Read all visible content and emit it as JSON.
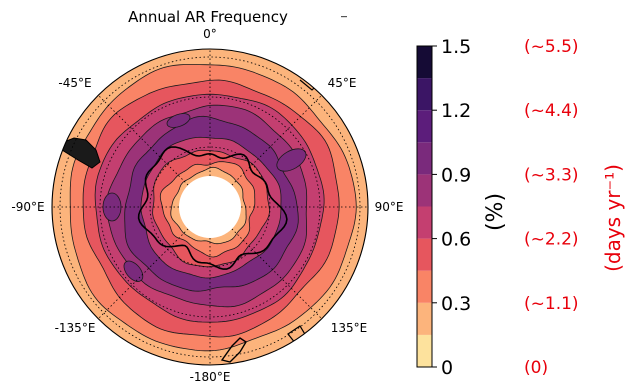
{
  "chart_data": {
    "type": "heatmap",
    "projection": "south-polar-stereographic",
    "title": "Annual AR Frequency",
    "longitude_labels": [
      "0°",
      "45°E",
      "90°E",
      "135°E",
      "-180°E",
      "-135°E",
      "-90°E",
      "-45°E"
    ],
    "latitude_circles_dotted": true,
    "colorbar": {
      "orientation": "vertical",
      "placement": "right",
      "label": "(%)",
      "ticks": [
        0,
        0.3,
        0.6,
        0.9,
        1.2,
        1.5
      ],
      "tick_labels": [
        "0",
        "0.3",
        "0.6",
        "0.9",
        "1.2",
        "1.5"
      ],
      "levels": [
        0,
        0.15,
        0.3,
        0.45,
        0.6,
        0.75,
        0.9,
        1.05,
        1.2,
        1.35,
        1.5
      ],
      "level_colors": [
        "#fde29d",
        "#fcb47c",
        "#f98466",
        "#e6565e",
        "#c43f70",
        "#9c3378",
        "#7a2a7c",
        "#5c1d7b",
        "#3b1565",
        "#150b35"
      ],
      "secondary_label": "(days yr⁻¹)",
      "secondary_tick_labels": [
        "(0)",
        "(~1.1)",
        "(~2.2)",
        "(~3.3)",
        "(~4.4)",
        "(~5.5)"
      ],
      "secondary_color": "#e8000b"
    },
    "zonal_frequency_bands": [
      {
        "level_range": [
          0.3,
          0.45
        ],
        "color": "#fcb47c"
      },
      {
        "level_range": [
          0.45,
          0.6
        ],
        "color": "#f98466"
      },
      {
        "level_range": [
          0.6,
          0.75
        ],
        "color": "#e6565e"
      },
      {
        "level_range": [
          0.75,
          0.9
        ],
        "color": "#c43f70"
      },
      {
        "level_range": [
          0.9,
          1.05
        ],
        "color": "#9c3378"
      },
      {
        "level_range": [
          1.05,
          1.2
        ],
        "color": "#7a2a7c"
      },
      {
        "level_range": [
          0.75,
          0.9
        ],
        "color": "#c43f70"
      },
      {
        "level_range": [
          0.6,
          0.75
        ],
        "color": "#e6565e"
      },
      {
        "level_range": [
          0.45,
          0.6
        ],
        "color": "#f98466"
      },
      {
        "level_range": [
          0.3,
          0.45
        ],
        "color": "#fcb47c"
      }
    ],
    "local_maxima": [
      {
        "region": "near -90°E",
        "level_range": [
          1.05,
          1.2
        ]
      },
      {
        "region": "near 60°E",
        "level_range": [
          1.05,
          1.2
        ]
      },
      {
        "region": "near -150°E",
        "level_range": [
          1.05,
          1.2
        ]
      },
      {
        "region": "near -30°E",
        "level_range": [
          1.05,
          1.2
        ]
      }
    ],
    "pole_masked": true
  }
}
